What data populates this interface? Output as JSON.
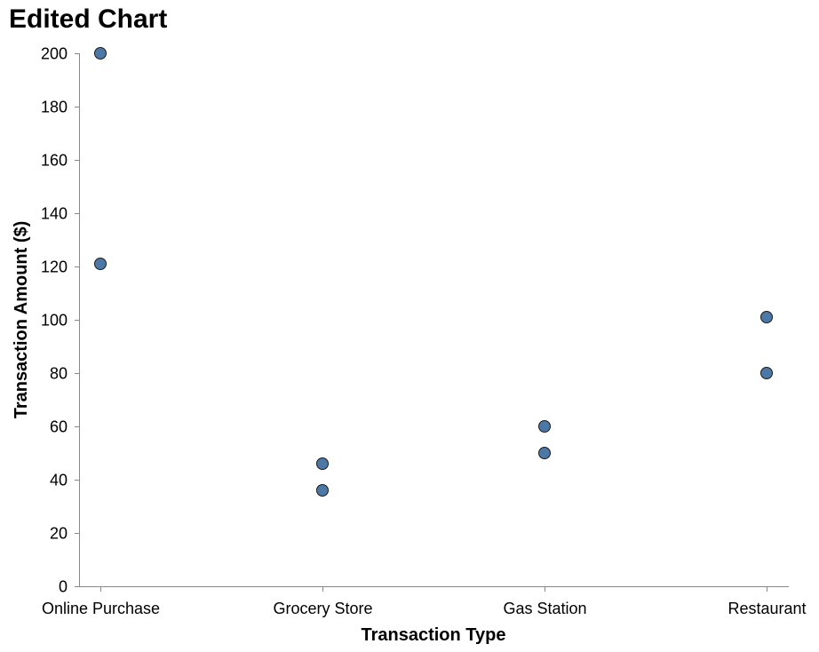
{
  "chart_data": {
    "type": "scatter",
    "title": "Edited Chart",
    "xlabel": "Transaction Type",
    "ylabel": "Transaction Amount ($)",
    "categories": [
      "Online Purchase",
      "Grocery Store",
      "Gas Station",
      "Restaurant"
    ],
    "ylim": [
      0,
      200
    ],
    "yticks": [
      0,
      20,
      40,
      60,
      80,
      100,
      120,
      140,
      160,
      180,
      200
    ],
    "grid": false,
    "points": [
      {
        "x": "Online Purchase",
        "y": 200
      },
      {
        "x": "Online Purchase",
        "y": 121
      },
      {
        "x": "Grocery Store",
        "y": 46
      },
      {
        "x": "Grocery Store",
        "y": 36
      },
      {
        "x": "Gas Station",
        "y": 60
      },
      {
        "x": "Gas Station",
        "y": 50
      },
      {
        "x": "Restaurant",
        "y": 101
      },
      {
        "x": "Restaurant",
        "y": 80
      }
    ],
    "colors": {
      "point_fill": "#4c78a8",
      "point_stroke": "#1a1a1a",
      "axis": "#888888"
    }
  }
}
